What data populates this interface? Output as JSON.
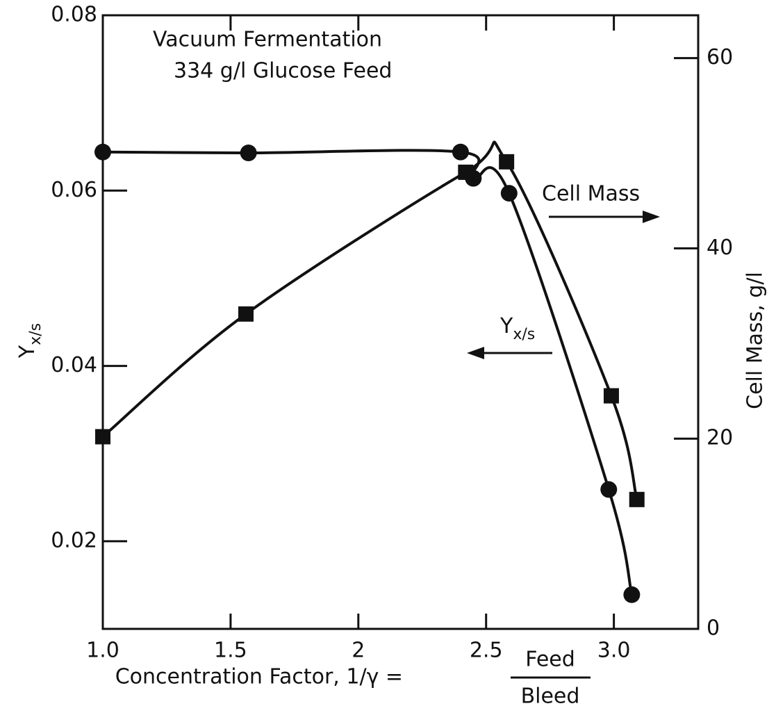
{
  "chart_data": {
    "type": "line",
    "annotations": [
      "Vacuum Fermentation",
      "334 g/l Glucose Feed",
      "Cell Mass"
    ],
    "arrow_label": {
      "main": "Y",
      "sub": "x/s"
    },
    "ylabel": {
      "main": "Y",
      "sub": "x/s"
    },
    "y2label": "Cell Mass, g/l",
    "xlabel": {
      "text": "Concentration Factor, 1/γ =",
      "numerator": "Feed",
      "denominator": "Bleed"
    },
    "xlim": [
      1.0,
      3.33
    ],
    "xticks": [
      {
        "value": 1,
        "label": "1.0"
      },
      1.5,
      2.0,
      2.5,
      {
        "value": 3,
        "label": "3.0"
      }
    ],
    "ylim": [
      0.01,
      0.08
    ],
    "yticks": [
      0.02,
      0.04,
      0.06,
      0.08
    ],
    "y2lim": [
      0,
      64.5
    ],
    "y2ticks": [
      0,
      20,
      40,
      60
    ],
    "series": [
      {
        "name": "Yx/s",
        "color": "#111",
        "marker": "circle",
        "x": [
          1.0,
          1.57,
          2.4,
          2.45,
          2.59,
          2.98,
          3.07
        ],
        "values": [
          0.0644,
          0.0643,
          0.0644,
          0.0614,
          0.0597,
          0.0259,
          0.0139
        ]
      },
      {
        "name": "Cell Mass",
        "color": "#111",
        "marker": "square",
        "axis": "y2",
        "x": [
          1.0,
          1.56,
          2.42,
          2.58,
          2.99,
          3.09
        ],
        "values": [
          20.2,
          33.1,
          48.0,
          49.1,
          24.5,
          13.6
        ]
      }
    ]
  }
}
